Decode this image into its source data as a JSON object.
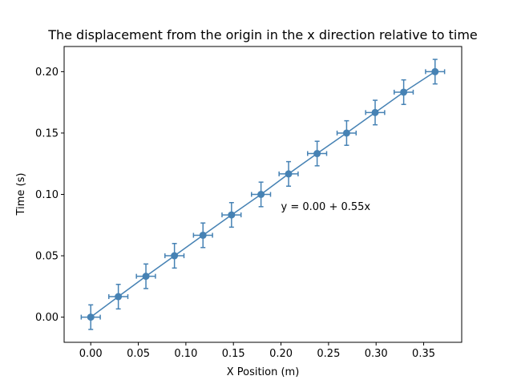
{
  "chart_data": {
    "type": "scatter",
    "title": "The displacement from the origin in the x direction relative to time",
    "xlabel": "X Position (m)",
    "ylabel": "Time (s)",
    "xlim": [
      -0.028,
      0.39
    ],
    "ylim": [
      -0.0205,
      0.2205
    ],
    "xticks": [
      0.0,
      0.05,
      0.1,
      0.15,
      0.2,
      0.25,
      0.3,
      0.35
    ],
    "xtick_labels": [
      "0.00",
      "0.05",
      "0.10",
      "0.15",
      "0.20",
      "0.25",
      "0.30",
      "0.35"
    ],
    "yticks": [
      0.0,
      0.05,
      0.1,
      0.15,
      0.2
    ],
    "ytick_labels": [
      "0.00",
      "0.05",
      "0.10",
      "0.15",
      "0.20"
    ],
    "grid": false,
    "color": "#4682b4",
    "x_error": 0.01,
    "y_error": 0.01,
    "points": [
      {
        "x": 0.0,
        "y": 0.0
      },
      {
        "x": 0.029,
        "y": 0.0167
      },
      {
        "x": 0.058,
        "y": 0.0333
      },
      {
        "x": 0.088,
        "y": 0.05
      },
      {
        "x": 0.118,
        "y": 0.0667
      },
      {
        "x": 0.148,
        "y": 0.0833
      },
      {
        "x": 0.179,
        "y": 0.1
      },
      {
        "x": 0.208,
        "y": 0.1167
      },
      {
        "x": 0.238,
        "y": 0.1333
      },
      {
        "x": 0.269,
        "y": 0.15
      },
      {
        "x": 0.299,
        "y": 0.1667
      },
      {
        "x": 0.329,
        "y": 0.1833
      },
      {
        "x": 0.362,
        "y": 0.2
      }
    ],
    "annotation": {
      "text": "y = 0.00 + 0.55x",
      "x": 0.2,
      "y": 0.09
    }
  }
}
